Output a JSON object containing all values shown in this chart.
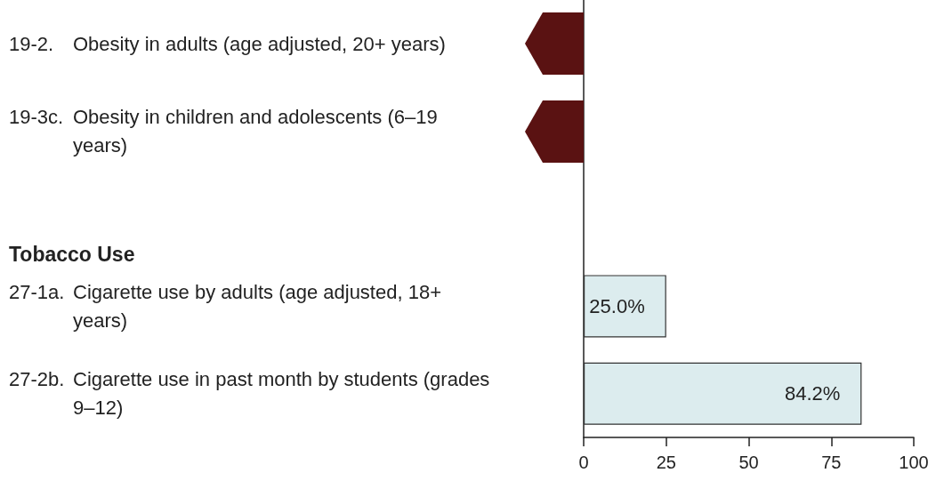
{
  "chart_data": {
    "type": "bar",
    "orientation": "horizontal",
    "categories": [
      "19-2. Obesity in adults (age adjusted, 20+ years)",
      "19-3c. Obesity in children and adolescents (6–19 years)",
      null,
      "27-1a. Cigarette use by adults (age adjusted, 18+ years)",
      "27-2b. Cigarette use in past month by students (grades 9–12)"
    ],
    "values": [
      null,
      null,
      null,
      25.0,
      84.2
    ],
    "value_labels": [
      null,
      null,
      null,
      "25.0%",
      "84.2%"
    ],
    "color": "#dcecee",
    "xlim": [
      0,
      100
    ],
    "xticks": [
      0,
      25,
      50,
      75,
      100
    ],
    "grid": false,
    "annotations": [
      "Tobacco Use"
    ]
  }
}
